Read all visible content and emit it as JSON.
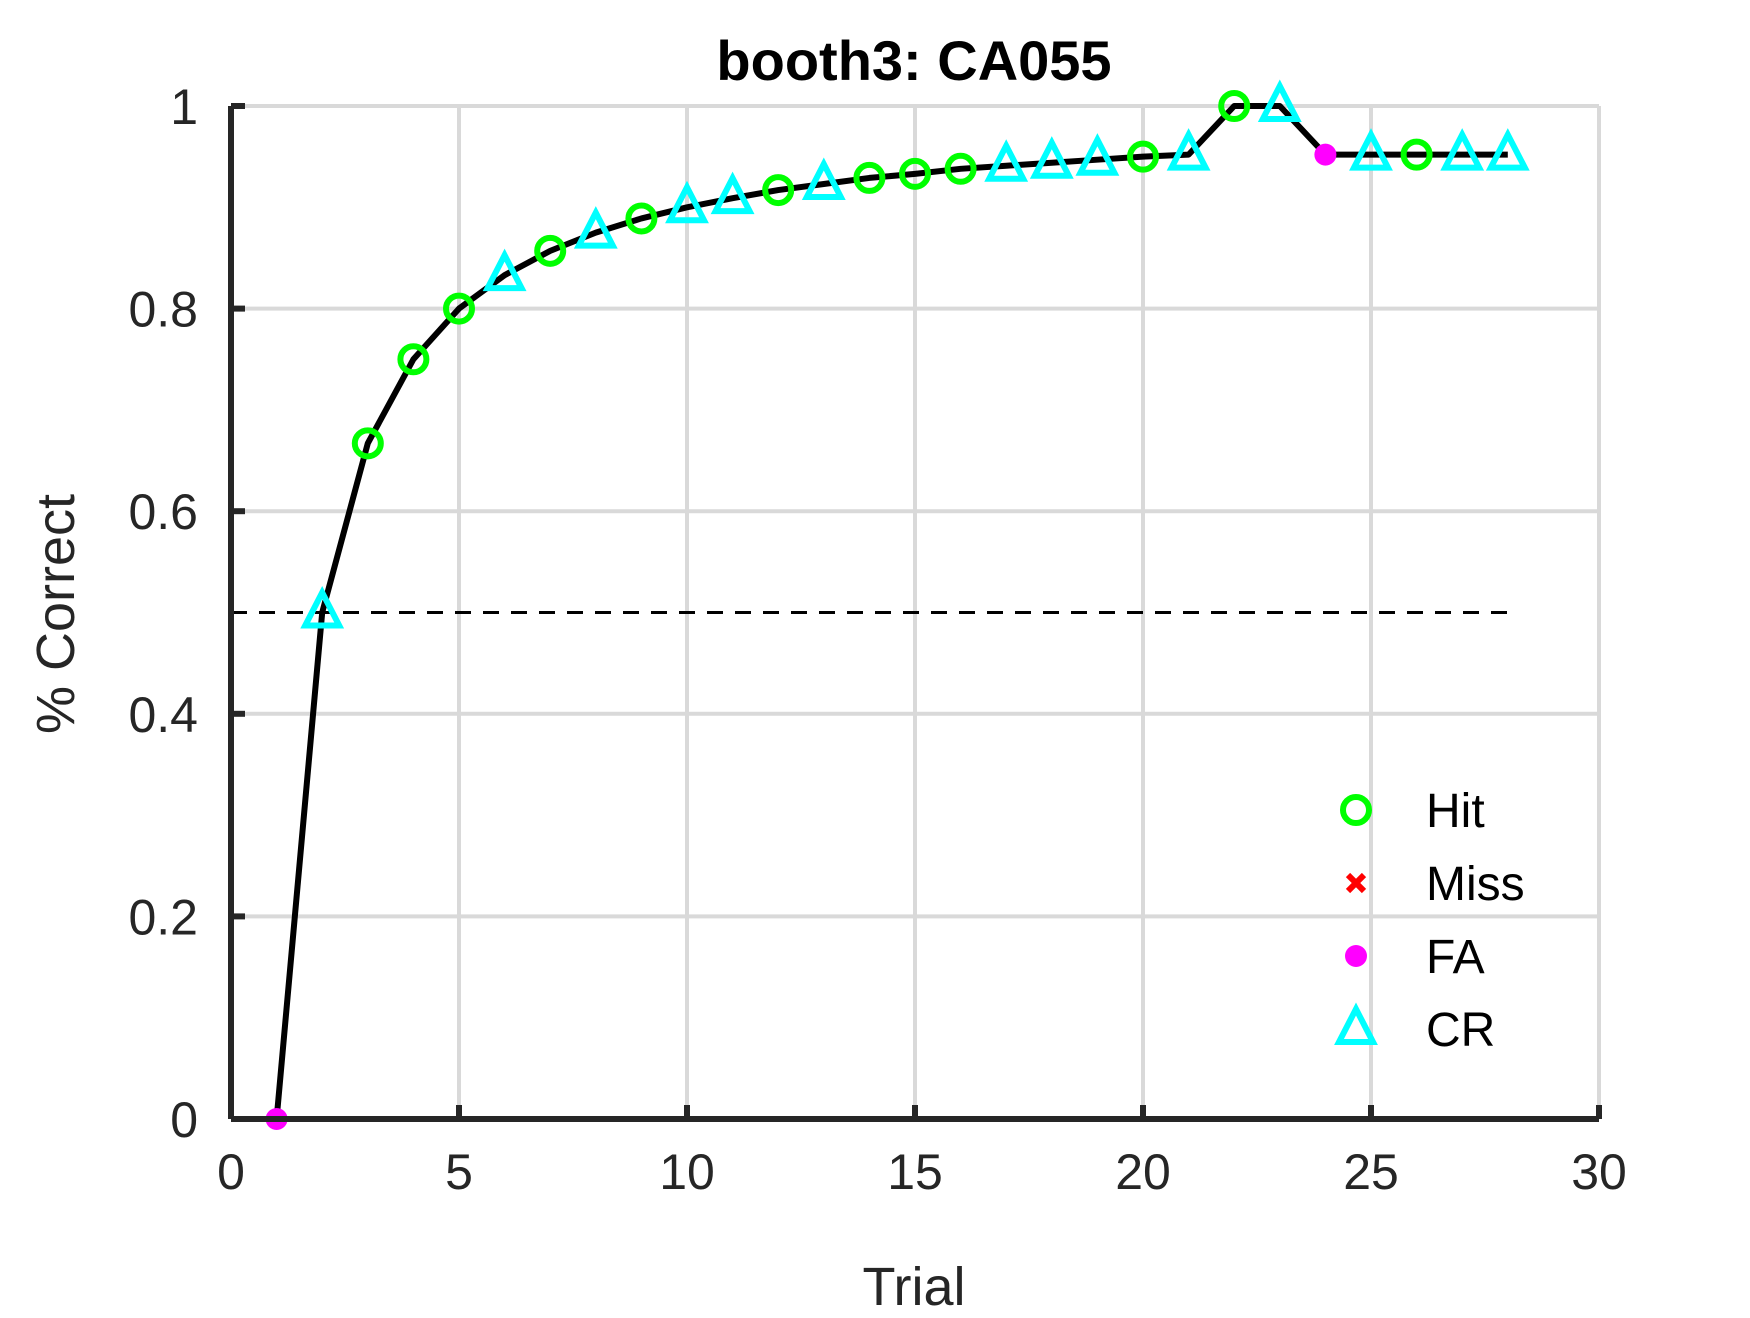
{
  "chart_data": {
    "type": "line",
    "title": "booth3: CA055",
    "xlabel": "Trial",
    "ylabel": "% Correct",
    "xlim": [
      0,
      30
    ],
    "ylim": [
      0,
      1
    ],
    "xticks": [
      0,
      5,
      10,
      15,
      20,
      25,
      30
    ],
    "yticks": [
      0,
      0.2,
      0.4,
      0.6,
      0.8,
      1
    ],
    "xtick_labels": [
      "0",
      "5",
      "10",
      "15",
      "20",
      "25",
      "30"
    ],
    "ytick_labels": [
      "0",
      "0.2",
      "0.4",
      "0.6",
      "0.8",
      "1"
    ],
    "grid": true,
    "legend_position": "bottom-right",
    "reference_line": {
      "y": 0.5,
      "x_range": [
        0,
        28
      ],
      "style": "dashed",
      "color": "#000000"
    },
    "series": [
      {
        "style": "line",
        "color": "#000000",
        "x": [
          1,
          2,
          3,
          4,
          5,
          6,
          7,
          8,
          9,
          10,
          11,
          12,
          13,
          14,
          15,
          16,
          17,
          18,
          19,
          20,
          21,
          22,
          23,
          24,
          25,
          26,
          27,
          28
        ],
        "y": [
          0,
          0.5,
          0.667,
          0.75,
          0.8,
          0.833,
          0.857,
          0.875,
          0.889,
          0.9,
          0.909,
          0.917,
          0.923,
          0.929,
          0.933,
          0.938,
          0.941,
          0.944,
          0.947,
          0.95,
          0.952,
          1,
          1,
          0.952,
          0.952,
          0.952,
          0.952,
          0.952
        ]
      },
      {
        "name": "Hit",
        "marker": "circle-open",
        "color": "#00FF00",
        "x": [
          3,
          4,
          5,
          7,
          9,
          12,
          14,
          15,
          16,
          20,
          22,
          26
        ],
        "y": [
          0.667,
          0.75,
          0.8,
          0.857,
          0.889,
          0.917,
          0.929,
          0.933,
          0.938,
          0.95,
          1,
          0.952
        ]
      },
      {
        "name": "Miss",
        "marker": "x",
        "color": "#FF0000",
        "x": [],
        "y": []
      },
      {
        "name": "FA",
        "marker": "dot",
        "color": "#FF00FF",
        "x": [
          1,
          24
        ],
        "y": [
          0,
          0.952
        ]
      },
      {
        "name": "CR",
        "marker": "triangle-open",
        "color": "#00FFFF",
        "x": [
          2,
          6,
          8,
          10,
          11,
          13,
          17,
          18,
          19,
          21,
          23,
          25,
          27,
          28
        ],
        "y": [
          0.5,
          0.833,
          0.875,
          0.9,
          0.909,
          0.923,
          0.941,
          0.944,
          0.947,
          0.952,
          1,
          0.952,
          0.952,
          0.952
        ]
      }
    ],
    "legend": [
      {
        "label": "Hit",
        "marker": "circle-open",
        "color": "#00FF00"
      },
      {
        "label": "Miss",
        "marker": "x",
        "color": "#FF0000"
      },
      {
        "label": "FA",
        "marker": "dot",
        "color": "#FF00FF"
      },
      {
        "label": "CR",
        "marker": "triangle-open",
        "color": "#00FFFF"
      }
    ]
  }
}
